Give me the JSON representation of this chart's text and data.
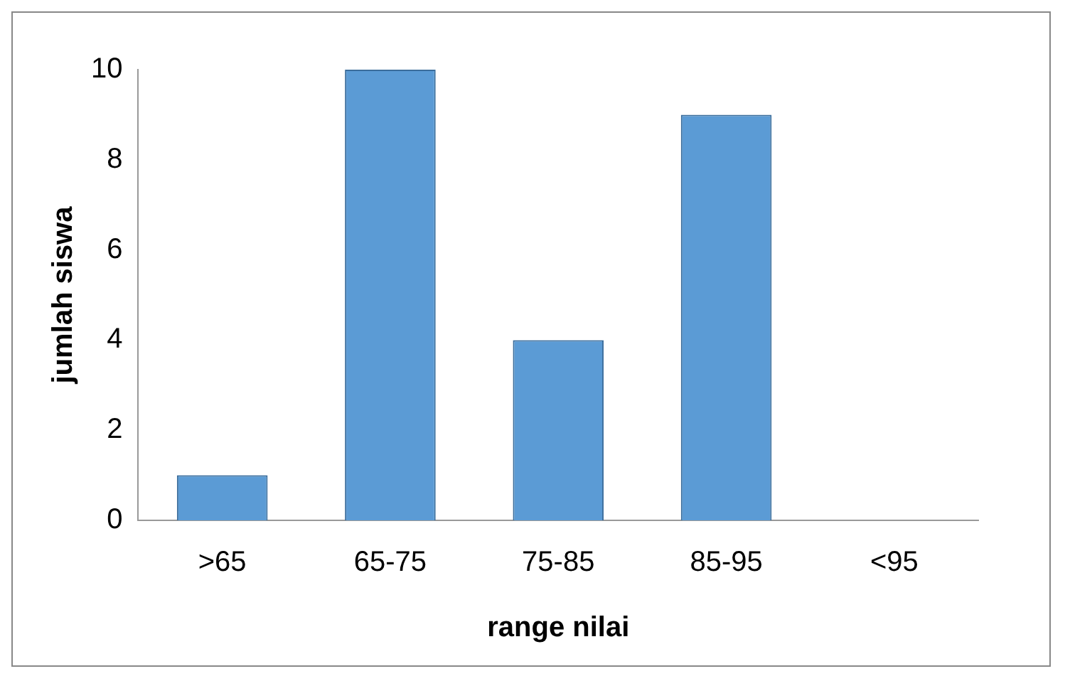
{
  "chart_data": {
    "type": "bar",
    "xlabel": "range nilai",
    "ylabel": "jumlah siswa",
    "categories": [
      ">65",
      "65-75",
      "75-85",
      "85-95",
      "<95"
    ],
    "values": [
      1,
      10,
      4,
      9,
      0
    ],
    "color": "#5b9bd5",
    "ylim": [
      0,
      10
    ],
    "yticks": [
      0,
      2,
      4,
      6,
      8,
      10
    ],
    "grid": false,
    "legend": false
  }
}
